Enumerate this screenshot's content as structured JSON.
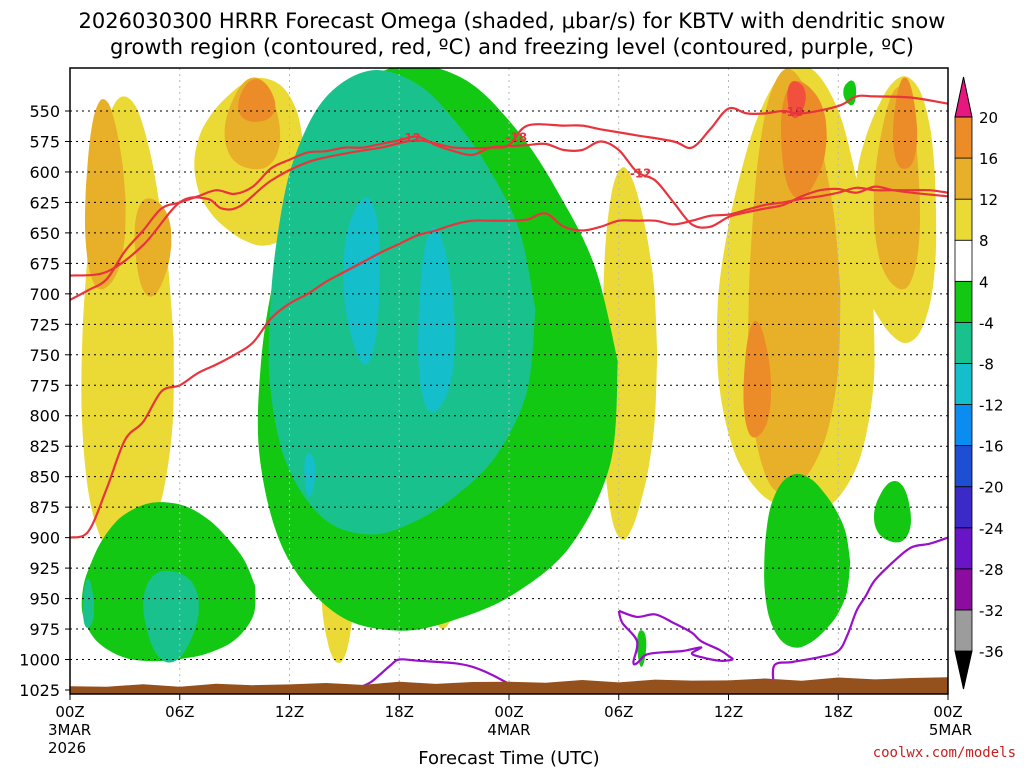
{
  "chart_data": {
    "type": "time-height cross section (filled contour)",
    "title_line1": "2026030300 HRRR Forecast Omega (shaded, μbar/s) for KBTV with dendritic snow",
    "title_line2": "growth region (contoured, red, ºC) and freezing level (contoured, purple, ºC)",
    "xlabel": "Forecast Time (UTC)",
    "credit": "coolwx.com/models",
    "x_range_hours": [
      0,
      48
    ],
    "x_ticks": [
      {
        "hour": 0,
        "label": "00Z",
        "sub1": "3MAR",
        "sub2": "2026"
      },
      {
        "hour": 6,
        "label": "06Z"
      },
      {
        "hour": 12,
        "label": "12Z"
      },
      {
        "hour": 18,
        "label": "18Z"
      },
      {
        "hour": 24,
        "label": "00Z",
        "sub1": "4MAR"
      },
      {
        "hour": 30,
        "label": "06Z"
      },
      {
        "hour": 36,
        "label": "12Z"
      },
      {
        "hour": 42,
        "label": "18Z"
      },
      {
        "hour": 48,
        "label": "00Z",
        "sub1": "5MAR"
      }
    ],
    "y_range_hpa": [
      1030,
      525
    ],
    "y_ticks_hpa": [
      550,
      575,
      600,
      625,
      650,
      675,
      700,
      725,
      750,
      775,
      800,
      825,
      850,
      875,
      900,
      925,
      950,
      975,
      1000,
      1025
    ],
    "colorbar": {
      "levels": [
        -36,
        -32,
        -28,
        -24,
        -20,
        -16,
        -12,
        -8,
        -4,
        4,
        8,
        12,
        16,
        20
      ],
      "colors": [
        "#000000",
        "#9c9c9c",
        "#8c0ca0",
        "#6a14c8",
        "#3c2ac8",
        "#1e4ed2",
        "#0a8cf0",
        "#14beca",
        "#19c28c",
        "#12c812",
        "#ffffff",
        "#ebda35",
        "#e8b028",
        "#eb8c28",
        "#f0503c",
        "#e6177e"
      ]
    },
    "omega_shading": [
      {
        "band": "4 to 8",
        "color": "#ebda35",
        "regions": [
          {
            "name": "hr0-5 column",
            "t": [
              0.6,
              5.6
            ],
            "p": [
              550,
              925
            ]
          },
          {
            "name": "hr7-13 column",
            "t": [
              7,
              13
            ],
            "p": [
              525,
              660
            ]
          },
          {
            "name": "hr20-24 column",
            "t": [
              20,
              24.5
            ],
            "p": [
              600,
              700
            ]
          },
          {
            "name": "hr14 low blob",
            "t": [
              13.8,
              15.5
            ],
            "p": [
              915,
              1000
            ]
          },
          {
            "name": "hr20 low blob",
            "t": [
              19.8,
              21.2
            ],
            "p": [
              895,
              975
            ]
          },
          {
            "name": "hr29-32 column",
            "t": [
              29,
              32
            ],
            "p": [
              600,
              900
            ]
          },
          {
            "name": "hr36-44 column",
            "t": [
              35.5,
              44
            ],
            "p": [
              525,
              890
            ]
          },
          {
            "name": "hr43-47 column",
            "t": [
              43,
              47.5
            ],
            "p": [
              525,
              740
            ]
          }
        ]
      },
      {
        "band": "8 to 12",
        "color": "#e8b028",
        "regions": [
          {
            "name": "hr1-3 core",
            "t": [
              0.8,
              3
            ],
            "p": [
              545,
              700
            ]
          },
          {
            "name": "hr3.5-5.5 core",
            "t": [
              3.5,
              5.5
            ],
            "p": [
              620,
              700
            ]
          },
          {
            "name": "hr8.5-11.5 core",
            "t": [
              8.5,
              11.5
            ],
            "p": [
              525,
              600
            ]
          },
          {
            "name": "hr37-42 core",
            "t": [
              37,
              42
            ],
            "p": [
              525,
              870
            ]
          },
          {
            "name": "hr44-46.5 core",
            "t": [
              44,
              46.5
            ],
            "p": [
              535,
              700
            ]
          }
        ]
      },
      {
        "band": "12 to 16",
        "color": "#eb8c28",
        "regions": [
          {
            "name": "hr10.2 peak",
            "t": [
              9.2,
              11.2
            ],
            "p": [
              525,
              560
            ]
          },
          {
            "name": "hr37.5 peak",
            "t": [
              36.8,
              38.3
            ],
            "p": [
              725,
              820
            ]
          },
          {
            "name": "hr39-41 peak",
            "t": [
              38.8,
              41.3
            ],
            "p": [
              525,
              620
            ]
          },
          {
            "name": "hr45.5 peak",
            "t": [
              45,
              46.3
            ],
            "p": [
              525,
              600
            ]
          }
        ]
      },
      {
        "band": "16 to 20",
        "color": "#f0503c",
        "regions": [
          {
            "name": "hr39.6 max",
            "t": [
              39.2,
              40.2
            ],
            "p": [
              525,
              555
            ]
          }
        ]
      },
      {
        "band": "-8 to -4",
        "color": "#12c812",
        "regions": [
          {
            "name": "main ascent plume",
            "t": [
              10,
              29.5
            ],
            "p": [
              525,
              985
            ]
          },
          {
            "name": "low-level band",
            "t": [
              0.6,
              10
            ],
            "p": [
              875,
              1005
            ]
          },
          {
            "name": "hr38-42.5 low blob",
            "t": [
              37.8,
              42.5
            ],
            "p": [
              850,
              990
            ]
          },
          {
            "name": "hr44-46 blob",
            "t": [
              44,
              46
            ],
            "p": [
              855,
              905
            ]
          },
          {
            "name": "hr42.5 spike",
            "t": [
              42.3,
              43
            ],
            "p": [
              525,
              545
            ]
          },
          {
            "name": "hr31 sliver",
            "t": [
              31,
              31.5
            ],
            "p": [
              975,
              1005
            ]
          }
        ]
      },
      {
        "band": "-12 to -8",
        "color": "#19c28c",
        "regions": [
          {
            "name": "hr1 blob",
            "t": [
              0.7,
              1.3
            ],
            "p": [
              935,
              975
            ]
          },
          {
            "name": "hr4-7 blob",
            "t": [
              4,
              7
            ],
            "p": [
              925,
              1000
            ]
          },
          {
            "name": "mid-level plume",
            "t": [
              10.5,
              25
            ],
            "p": [
              525,
              900
            ]
          }
        ]
      },
      {
        "band": "-16 to -12",
        "color": "#14beca",
        "regions": [
          {
            "name": "hr15-17 core",
            "t": [
              15,
              17
            ],
            "p": [
              620,
              755
            ]
          },
          {
            "name": "hr19-21 core",
            "t": [
              19,
              21
            ],
            "p": [
              650,
              800
            ]
          },
          {
            "name": "hr13 core",
            "t": [
              12.8,
              13.4
            ],
            "p": [
              830,
              865
            ]
          }
        ]
      }
    ],
    "dgz_contours_c": [
      {
        "label": "-18",
        "label_positions_hours": [
          24.4,
          39.5
        ],
        "points": [
          [
            0,
            685
          ],
          [
            2,
            682
          ],
          [
            4,
            660
          ],
          [
            6,
            625
          ],
          [
            7.5,
            622
          ],
          [
            8.3,
            630
          ],
          [
            9.3,
            628
          ],
          [
            11,
            607
          ],
          [
            13,
            592
          ],
          [
            15,
            585
          ],
          [
            17,
            580
          ],
          [
            19,
            574
          ],
          [
            21,
            580
          ],
          [
            23,
            580
          ],
          [
            24,
            578
          ],
          [
            25,
            562
          ],
          [
            27,
            562
          ],
          [
            28,
            562
          ],
          [
            29,
            565
          ],
          [
            31,
            570
          ],
          [
            33,
            575
          ],
          [
            34,
            580
          ],
          [
            35,
            565
          ],
          [
            36,
            548
          ],
          [
            37,
            552
          ],
          [
            38,
            552
          ],
          [
            39,
            550
          ],
          [
            40,
            552
          ],
          [
            42,
            546
          ],
          [
            43,
            538
          ],
          [
            44,
            538
          ],
          [
            46,
            539
          ],
          [
            48,
            544
          ]
        ]
      },
      {
        "label": "-12",
        "label_positions_hours": [
          18.6,
          31.2
        ],
        "points": [
          [
            0,
            705
          ],
          [
            1,
            697
          ],
          [
            2,
            688
          ],
          [
            3,
            665
          ],
          [
            4,
            648
          ],
          [
            5,
            630
          ],
          [
            6,
            625
          ],
          [
            7,
            620
          ],
          [
            8,
            615
          ],
          [
            9,
            618
          ],
          [
            10,
            612
          ],
          [
            11,
            597
          ],
          [
            12,
            590
          ],
          [
            13,
            584
          ],
          [
            14,
            583
          ],
          [
            15,
            580
          ],
          [
            16,
            580
          ],
          [
            17,
            577
          ],
          [
            18,
            574
          ],
          [
            19,
            571
          ],
          [
            20,
            578
          ],
          [
            21,
            583
          ],
          [
            22,
            586
          ],
          [
            23,
            580
          ],
          [
            24,
            579
          ],
          [
            25,
            578
          ],
          [
            26,
            577
          ],
          [
            27,
            582
          ],
          [
            28,
            582
          ],
          [
            29,
            575
          ],
          [
            30,
            582
          ],
          [
            31,
            600
          ],
          [
            32,
            607
          ],
          [
            33,
            625
          ],
          [
            34,
            643
          ],
          [
            35,
            645
          ],
          [
            36,
            637
          ],
          [
            37,
            633
          ],
          [
            38,
            630
          ],
          [
            39,
            627
          ],
          [
            40,
            620
          ],
          [
            41,
            615
          ],
          [
            42,
            614
          ],
          [
            43,
            617
          ],
          [
            44,
            612
          ],
          [
            45,
            615
          ],
          [
            46,
            617
          ],
          [
            48,
            620
          ]
        ]
      },
      {
        "label": "",
        "label_positions_hours": [],
        "points": [
          [
            0,
            900
          ],
          [
            1,
            895
          ],
          [
            2,
            860
          ],
          [
            3,
            820
          ],
          [
            4,
            805
          ],
          [
            5,
            780
          ],
          [
            6,
            775
          ],
          [
            7,
            765
          ],
          [
            8,
            758
          ],
          [
            9,
            750
          ],
          [
            10,
            740
          ],
          [
            11,
            720
          ],
          [
            12,
            708
          ],
          [
            13,
            700
          ],
          [
            14,
            690
          ],
          [
            15,
            682
          ],
          [
            16,
            674
          ],
          [
            17,
            666
          ],
          [
            18,
            659
          ],
          [
            19,
            652
          ],
          [
            20,
            648
          ],
          [
            21,
            643
          ],
          [
            22,
            640
          ],
          [
            23,
            640
          ],
          [
            24,
            640
          ],
          [
            25,
            639
          ],
          [
            26,
            634
          ],
          [
            27,
            645
          ],
          [
            28,
            648
          ],
          [
            29,
            645
          ],
          [
            30,
            640
          ],
          [
            31,
            640
          ],
          [
            32,
            640
          ],
          [
            33,
            643
          ],
          [
            34,
            640
          ],
          [
            35,
            636
          ],
          [
            36,
            635
          ],
          [
            37,
            631
          ],
          [
            38,
            627
          ],
          [
            39,
            625
          ],
          [
            40,
            622
          ],
          [
            41,
            620
          ],
          [
            42,
            617
          ],
          [
            43,
            613
          ],
          [
            44,
            615
          ],
          [
            45,
            615
          ],
          [
            46,
            615
          ],
          [
            47,
            615
          ],
          [
            48,
            617
          ]
        ]
      }
    ],
    "freezing_level_contours": [
      {
        "name": "freezing level a",
        "points": [
          [
            15.8,
            1023
          ],
          [
            16.5,
            1018
          ],
          [
            17.5,
            1005
          ],
          [
            18,
            1000
          ],
          [
            19,
            1001
          ],
          [
            21,
            1003
          ],
          [
            22,
            1006
          ],
          [
            23,
            1012
          ],
          [
            24,
            1020
          ]
        ]
      },
      {
        "name": "freezing level b",
        "points": [
          [
            30,
            960
          ],
          [
            31,
            965
          ],
          [
            32,
            963
          ],
          [
            33,
            970
          ],
          [
            34,
            978
          ],
          [
            34.5,
            985
          ],
          [
            35.5,
            992
          ],
          [
            36,
            997
          ],
          [
            36.2,
            1000
          ],
          [
            35.5,
            1001
          ],
          [
            34.5,
            998
          ],
          [
            34,
            995
          ],
          [
            34.5,
            990
          ],
          [
            33.5,
            993
          ],
          [
            32.5,
            994
          ],
          [
            31.5,
            996
          ],
          [
            31,
            1003
          ],
          [
            30.8,
            1002
          ],
          [
            31,
            985
          ],
          [
            30.2,
            970
          ],
          [
            30,
            960
          ]
        ]
      },
      {
        "name": "freezing level c",
        "points": [
          [
            38.5,
            1025
          ],
          [
            38.5,
            1005
          ],
          [
            39.5,
            1002
          ],
          [
            41,
            998
          ],
          [
            42,
            993
          ],
          [
            42.5,
            980
          ],
          [
            43,
            960
          ],
          [
            43.5,
            948
          ],
          [
            44,
            935
          ],
          [
            45,
            920
          ],
          [
            46,
            908
          ],
          [
            47,
            905
          ],
          [
            48,
            900
          ]
        ]
      }
    ],
    "terrain": {
      "color": "#94511e",
      "surface_hpa_at_0": 1022,
      "surface_hpa_at_48": 1015
    }
  }
}
